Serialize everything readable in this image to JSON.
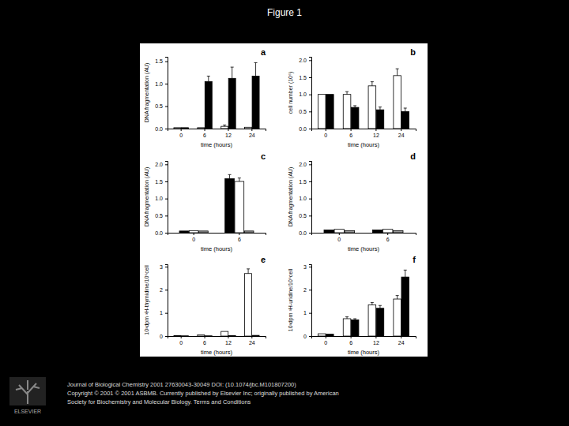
{
  "header": {
    "title": "Figure 1"
  },
  "chart_data": [
    {
      "type": "bar",
      "title": "a",
      "x_label": "time (hours)",
      "y_label": "DNA fragmentation (AU)",
      "categories": [
        "0",
        "6",
        "12",
        "24"
      ],
      "series": [
        {
          "color": "#ffffff",
          "values": [
            0.02,
            0.02,
            0.05,
            0.03
          ],
          "errors": [
            null,
            null,
            0.03,
            null
          ]
        },
        {
          "color": "#000000",
          "values": [
            0.02,
            1.05,
            1.12,
            1.17
          ],
          "errors": [
            null,
            0.12,
            0.25,
            0.3
          ]
        }
      ],
      "ylim": [
        0,
        1.6
      ],
      "yticks": [
        {
          "value": 0,
          "label": "0.0"
        },
        {
          "value": 0.5,
          "label": "0.5"
        },
        {
          "value": 1,
          "label": "1.0"
        },
        {
          "value": 1.5,
          "label": "1.5"
        }
      ]
    },
    {
      "type": "bar",
      "title": "b",
      "x_label": "time (hours)",
      "y_label": "cell number (10⁶)",
      "categories": [
        "0",
        "6",
        "12",
        "24"
      ],
      "series": [
        {
          "color": "#ffffff",
          "values": [
            1.0,
            1.0,
            1.25,
            1.55
          ],
          "errors": [
            null,
            0.08,
            0.12,
            0.2
          ]
        },
        {
          "color": "#000000",
          "values": [
            1.0,
            0.62,
            0.55,
            0.5
          ],
          "errors": [
            null,
            0.05,
            0.08,
            0.1
          ]
        }
      ],
      "ylim": [
        0,
        2.1
      ],
      "yticks": [
        {
          "value": 0,
          "label": "0.0"
        },
        {
          "value": 0.5,
          "label": "0.5"
        },
        {
          "value": 1,
          "label": "1.0"
        },
        {
          "value": 1.5,
          "label": "1.5"
        },
        {
          "value": 2,
          "label": "2.0"
        }
      ]
    },
    {
      "type": "bar",
      "title": "c",
      "x_label": "time (hours)",
      "y_label": "DNA fragmentation (AU)",
      "categories": [
        "0",
        "6"
      ],
      "series": [
        {
          "color": "#000000",
          "values": [
            0.05,
            1.58
          ],
          "errors": [
            null,
            0.12
          ]
        },
        {
          "color": "#ffffff",
          "values": [
            0.06,
            1.5
          ],
          "errors": [
            null,
            0.1
          ]
        },
        {
          "color": "#999999",
          "values": [
            0.05,
            0.05
          ],
          "errors": [
            null,
            null
          ]
        }
      ],
      "ylim": [
        0,
        2.1
      ],
      "yticks": [
        {
          "value": 0,
          "label": "0.0"
        },
        {
          "value": 0.5,
          "label": "0.5"
        },
        {
          "value": 1,
          "label": "1.0"
        },
        {
          "value": 1.5,
          "label": "1.5"
        },
        {
          "value": 2,
          "label": "2.0"
        }
      ]
    },
    {
      "type": "bar",
      "title": "d",
      "x_label": "time (hours)",
      "y_label": "DNA fragmentation (AU)",
      "categories": [
        "0",
        "6"
      ],
      "series": [
        {
          "color": "#000000",
          "values": [
            0.08,
            0.08
          ],
          "errors": [
            null,
            null
          ]
        },
        {
          "color": "#ffffff",
          "values": [
            0.1,
            0.1
          ],
          "errors": [
            null,
            null
          ]
        },
        {
          "color": "#999999",
          "values": [
            0.06,
            0.06
          ],
          "errors": [
            null,
            null
          ]
        }
      ],
      "ylim": [
        0,
        2.1
      ],
      "yticks": [
        {
          "value": 0,
          "label": "0.0"
        },
        {
          "value": 0.5,
          "label": "0.5"
        },
        {
          "value": 1,
          "label": "1.0"
        },
        {
          "value": 1.5,
          "label": "1.5"
        },
        {
          "value": 2,
          "label": "2.0"
        }
      ]
    },
    {
      "type": "bar",
      "title": "e",
      "x_label": "time (hours)",
      "y_label": "10³dpm ³H-thymidine/10⁶cell",
      "categories": [
        "0",
        "6",
        "12",
        "24"
      ],
      "series": [
        {
          "color": "#ffffff",
          "values": [
            0.02,
            0.05,
            0.2,
            2.7
          ],
          "errors": [
            null,
            null,
            null,
            0.2
          ]
        },
        {
          "color": "#000000",
          "values": [
            0.01,
            0.01,
            0.02,
            0.03
          ],
          "errors": [
            null,
            null,
            null,
            null
          ]
        }
      ],
      "ylim": [
        0,
        3.1
      ],
      "yticks": [
        0,
        1,
        2,
        3
      ]
    },
    {
      "type": "bar",
      "title": "f",
      "x_label": "time (hours)",
      "y_label": "10³dpm ³H-uridine/10⁶cell",
      "categories": [
        "0",
        "6",
        "12",
        "24"
      ],
      "series": [
        {
          "color": "#ffffff",
          "values": [
            0.1,
            0.75,
            1.35,
            1.6
          ],
          "errors": [
            null,
            0.08,
            0.1,
            0.15
          ]
        },
        {
          "color": "#000000",
          "values": [
            0.08,
            0.7,
            1.2,
            2.55
          ],
          "errors": [
            null,
            0.05,
            0.12,
            0.3
          ]
        }
      ],
      "ylim": [
        0,
        3.1
      ],
      "yticks": [
        0,
        1,
        2,
        3
      ]
    }
  ],
  "logo": {
    "text": "ELSEVIER"
  },
  "footer": {
    "lines": [
      "Journal of Biological Chemistry 2001 27630043-30049 DOI: (10.1074/jbc.M101807200)",
      "Copyright © 2001 © 2001 ASBMB. Currently published by Elsevier Inc; originally published by American",
      "Society for Biochemistry and Molecular Biology. Terms and Conditions"
    ]
  }
}
